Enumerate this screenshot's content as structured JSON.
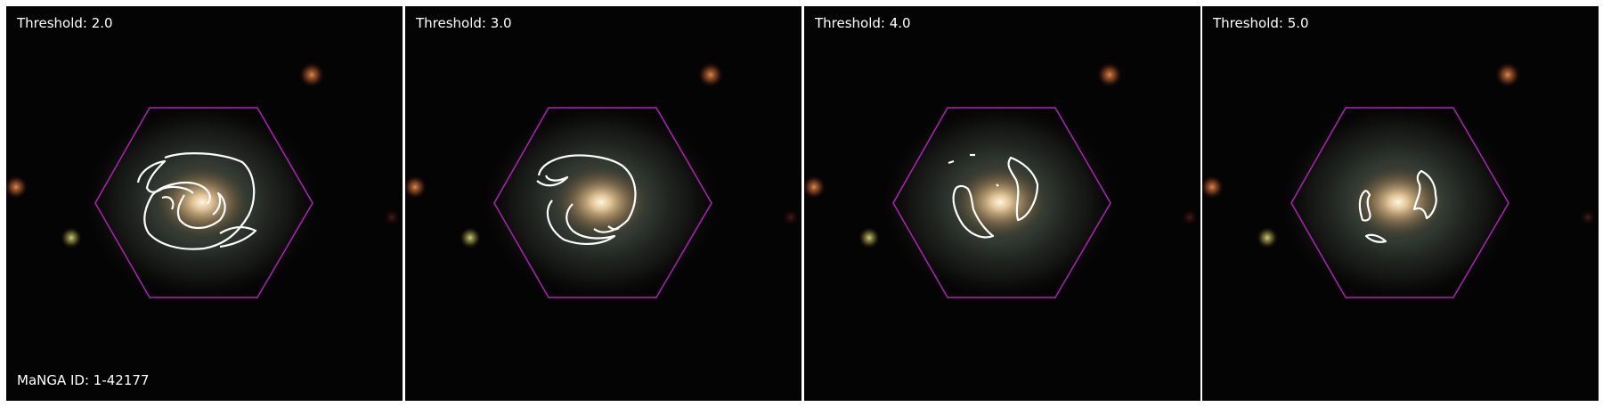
{
  "panels": [
    {
      "threshold_label": "Threshold: 2.0"
    },
    {
      "threshold_label": "Threshold: 3.0"
    },
    {
      "threshold_label": "Threshold: 4.0"
    },
    {
      "threshold_label": "Threshold: 5.0"
    }
  ],
  "galaxy_id_label": "MaNGA ID: 1-42177",
  "colors": {
    "hexagon": "#b020b8",
    "contour": "#ffffff",
    "text": "#ffffff",
    "background": "#050404"
  }
}
